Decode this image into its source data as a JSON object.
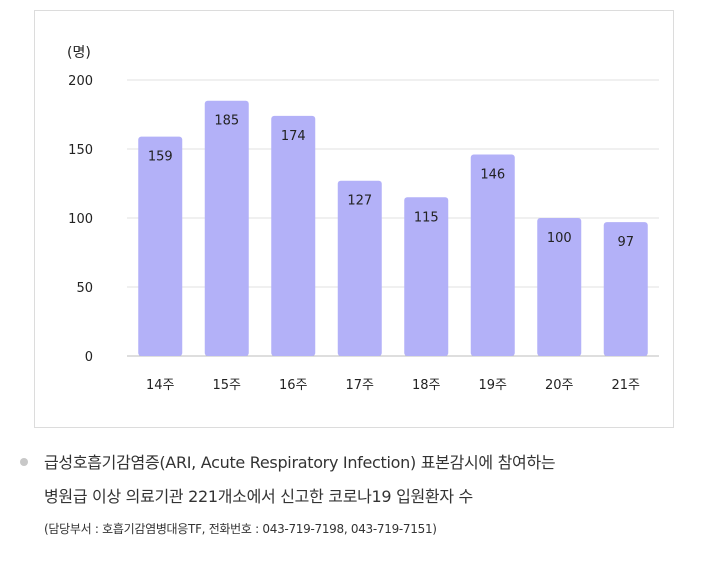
{
  "chart_data": {
    "type": "bar",
    "categories": [
      "14주",
      "15주",
      "16주",
      "17주",
      "18주",
      "19주",
      "20주",
      "21주"
    ],
    "values": [
      159,
      185,
      174,
      127,
      115,
      146,
      100,
      97
    ],
    "title": "",
    "xlabel": "",
    "ylabel": "(명)",
    "ylim": [
      0,
      200
    ],
    "yticks": [
      "0",
      "50",
      "100",
      "150",
      "200"
    ],
    "grid": true,
    "legend": "none",
    "bar_color": "#b3b1f8"
  },
  "caption": {
    "line1": "급성호흡기감염증(ARI, Acute Respiratory Infection) 표본감시에 참여하는",
    "line2": "병원급 이상 의료기관 221개소에서 신고한 코로나19 입원환자 수",
    "line3": "(담당부서 : 호흡기감염병대응TF, 전화번호 : 043-719-7198, 043-719-7151)"
  }
}
